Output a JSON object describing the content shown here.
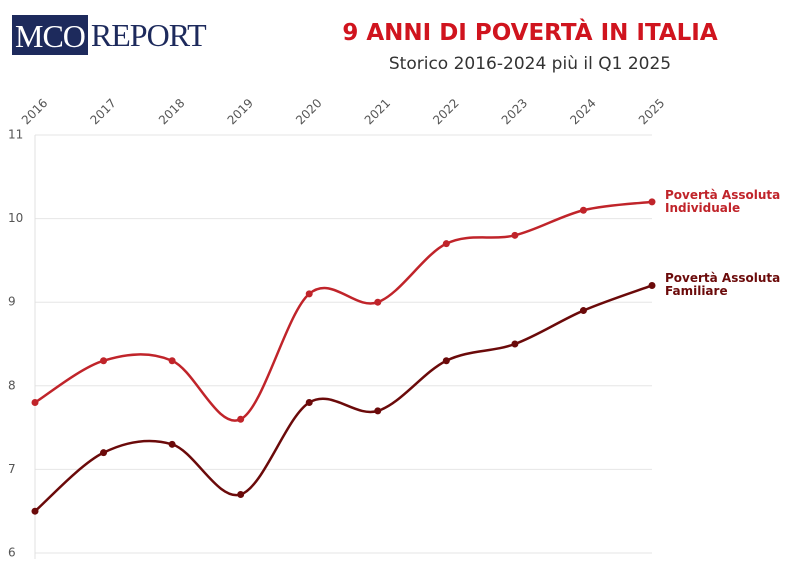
{
  "logo": {
    "left": "MCO",
    "right": "REPORT"
  },
  "chart_data": {
    "type": "line",
    "title": "9 ANNI DI POVERTÀ IN ITALIA",
    "subtitle": "Storico 2016-2024 più il Q1 2025",
    "x": [
      2016,
      2017,
      2018,
      2019,
      2020,
      2021,
      2022,
      2023,
      2024,
      2025
    ],
    "xlim": [
      2016,
      2025
    ],
    "xticks": [
      2016,
      2017,
      2018,
      2019,
      2020,
      2021,
      2022,
      2023,
      2024,
      2025
    ],
    "ylim": [
      6,
      11
    ],
    "yticks": [
      6,
      7,
      8,
      9,
      10,
      11
    ],
    "grid": true,
    "series": [
      {
        "name": "Povertà Assoluta Individuale",
        "color": "#c0242a",
        "values": [
          7.8,
          8.3,
          8.3,
          7.6,
          9.1,
          9.0,
          9.7,
          9.8,
          10.1,
          10.2
        ]
      },
      {
        "name": "Povertà Assoluta Familiare",
        "color": "#6b0a0a",
        "values": [
          6.5,
          7.2,
          7.3,
          6.7,
          7.8,
          7.7,
          8.3,
          8.5,
          8.9,
          9.2
        ]
      }
    ]
  }
}
